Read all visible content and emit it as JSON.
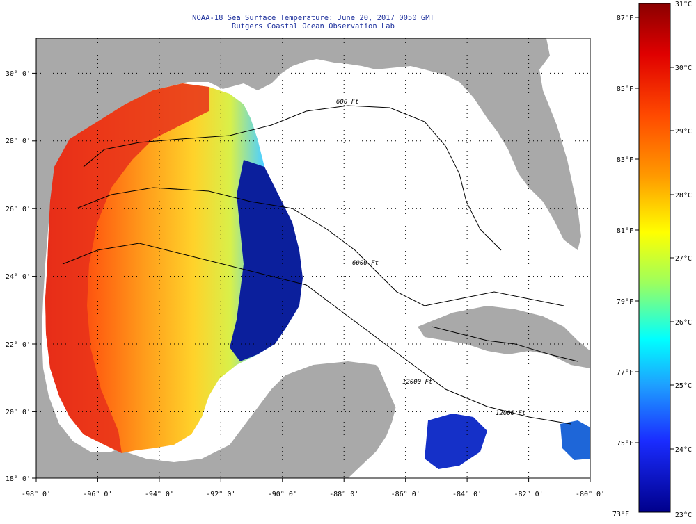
{
  "header": {
    "title": "NOAA-18 Sea Surface Temperature:  June 20, 2017 0050 GMT",
    "subtitle": "Rutgers Coastal Ocean Observation Lab"
  },
  "map": {
    "lon_range": [
      -98,
      -80
    ],
    "lat_range": [
      18,
      31
    ],
    "x_ticks": [
      "-98° 0'",
      "-96° 0'",
      "-94° 0'",
      "-92° 0'",
      "-90° 0'",
      "-88° 0'",
      "-86° 0'",
      "-84° 0'",
      "-82° 0'",
      "-80° 0'"
    ],
    "y_ticks": [
      "30° 0'",
      "28° 0'",
      "26° 0'",
      "24° 0'",
      "22° 0'",
      "20° 0'",
      "18° 0'"
    ],
    "contour_labels": [
      "600 Ft",
      "6000 Ft",
      "12000 Ft",
      "12000 Ft"
    ],
    "colors": {
      "land": "#a9a9a9",
      "nodata": "#ffffff",
      "gridline": "#000000"
    }
  },
  "colorbar": {
    "fahrenheit_labels": [
      "87°F",
      "85°F",
      "83°F",
      "81°F",
      "79°F",
      "77°F",
      "75°F",
      "73°F"
    ],
    "celsius_labels": [
      "31°C",
      "30°C",
      "29°C",
      "28°C",
      "27°C",
      "26°C",
      "25°C",
      "24°C",
      "23°C"
    ],
    "gradient_colors": [
      "#8b0000",
      "#ff1a00",
      "#ff8c00",
      "#ffff00",
      "#7fff7f",
      "#00ffff",
      "#1e90ff",
      "#0000cd",
      "#00008b"
    ]
  }
}
